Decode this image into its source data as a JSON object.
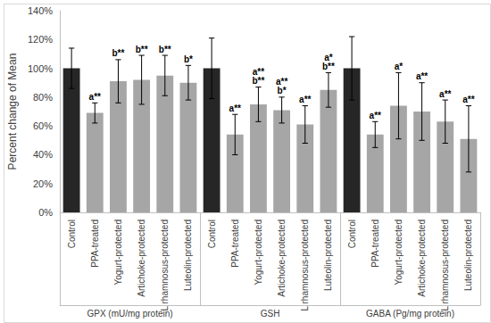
{
  "chart_data": {
    "type": "bar",
    "y_label": "Percent change of Mean",
    "groups": [
      "GPX (mU/mg protein)",
      "GSH",
      "GABA (Pg/mg protein)"
    ],
    "categories": [
      "Control",
      "PPA-treated",
      "Yogurt-protected",
      "Artichoke-protected",
      "L rhamnosus-protected",
      "Luteolin-protected",
      "Control",
      "PPA-treated",
      "Yogurt-protected",
      "Artichoke-protected",
      "L rhamnosus-protected",
      "Luteolin-protected",
      "Control",
      "PPA-treated",
      "Yogurt-protected",
      "Artichoke-protected",
      "L rhamnosus-protected",
      "Luteolin-protected"
    ],
    "values": [
      100,
      69,
      91,
      92,
      95,
      90,
      100,
      54,
      75,
      71,
      61,
      85,
      100,
      54,
      74,
      70,
      63,
      51
    ],
    "errors": [
      14,
      7,
      15,
      17,
      14,
      12,
      21,
      14,
      12,
      9,
      13,
      12,
      22,
      9,
      23,
      20,
      15,
      23
    ],
    "annotations": [
      null,
      "a**",
      "b**",
      "b**",
      "b**",
      "b*",
      null,
      "a**",
      "a**\nb**",
      "a**\nb*",
      "a**",
      "a*\nb**",
      null,
      "a**",
      "a*",
      "a**",
      "a**",
      "a**"
    ],
    "colors": [
      "#262626",
      "#a6a6a6",
      "#a6a6a6",
      "#a6a6a6",
      "#a6a6a6",
      "#a6a6a6",
      "#262626",
      "#a6a6a6",
      "#a6a6a6",
      "#a6a6a6",
      "#a6a6a6",
      "#a6a6a6",
      "#262626",
      "#a6a6a6",
      "#a6a6a6",
      "#a6a6a6",
      "#a6a6a6",
      "#a6a6a6"
    ],
    "ylim": [
      0,
      140
    ],
    "yticks": [
      {
        "value": 0,
        "label": "0%"
      },
      {
        "value": 20,
        "label": "20%"
      },
      {
        "value": 40,
        "label": "40%"
      },
      {
        "value": 60,
        "label": "60%"
      },
      {
        "value": 80,
        "label": "80%"
      },
      {
        "value": 100,
        "label": "100%"
      },
      {
        "value": 120,
        "label": "120%"
      },
      {
        "value": 140,
        "label": "140%"
      }
    ],
    "grid": false
  }
}
